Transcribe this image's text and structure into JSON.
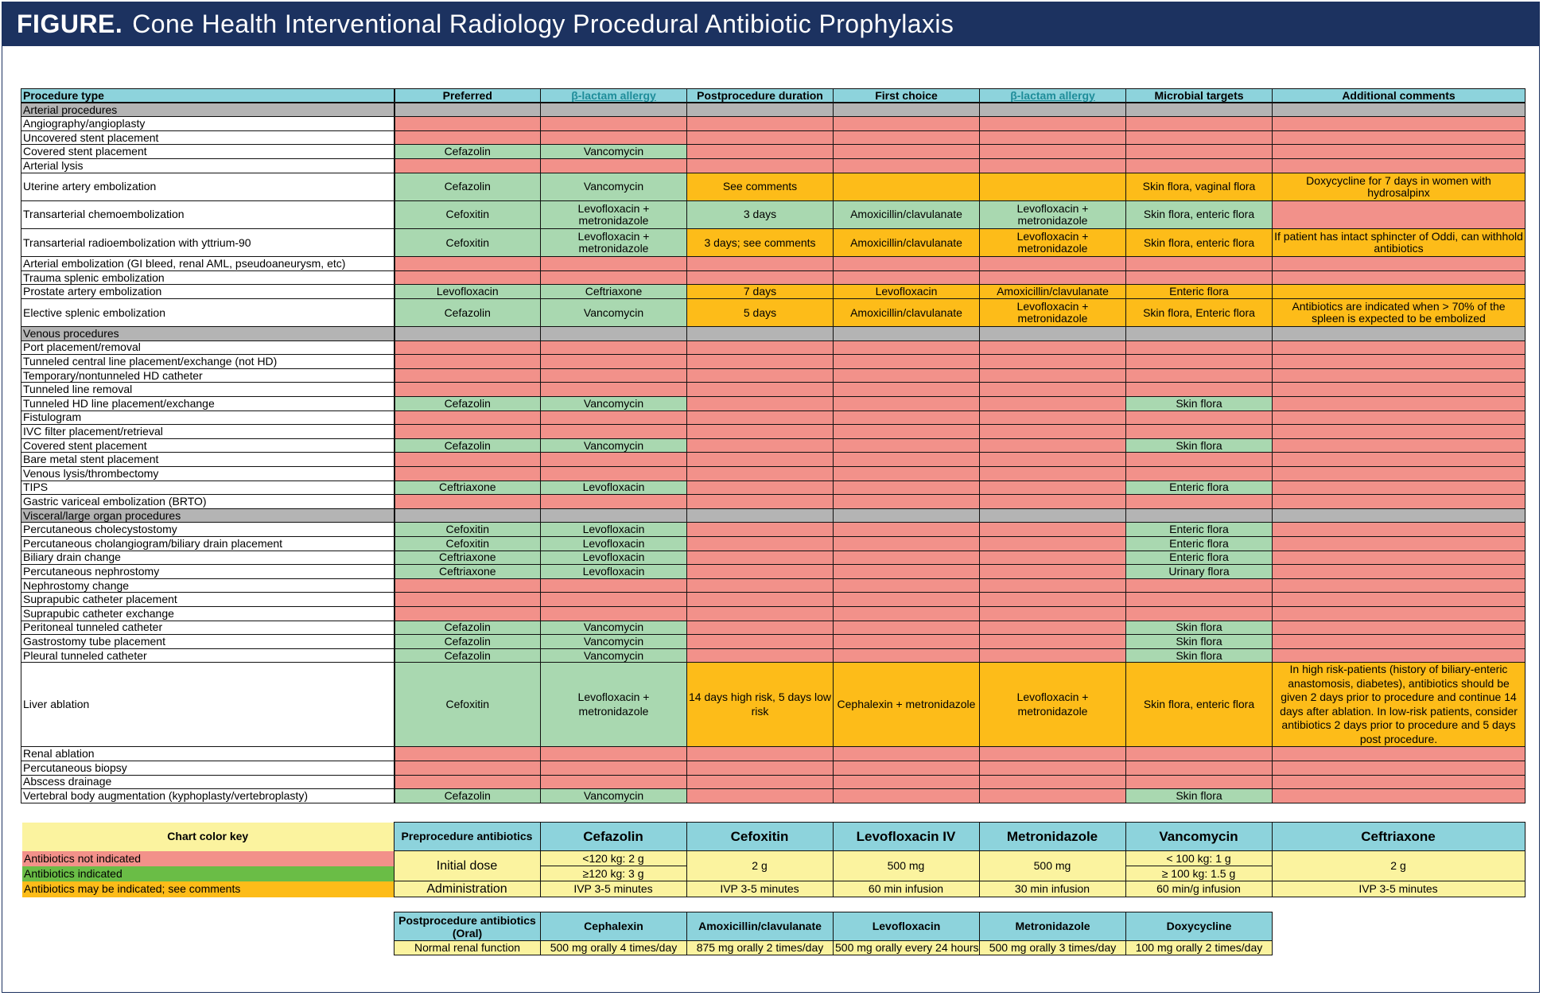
{
  "figure": {
    "label": "FIGURE.",
    "title": "Cone Health Interventional Radiology Procedural Antibiotic Prophylaxis"
  },
  "header": [
    "Procedure type",
    "Preferred",
    "β-lactam allergy",
    "Postprocedure duration",
    "First choice",
    "β-lactam allergy",
    "Microbial targets",
    "Additional comments"
  ],
  "rows": [
    {
      "section": "Arterial procedures"
    },
    {
      "name": "Angiography/angioplasty",
      "cells": [
        [
          "",
          "r"
        ],
        [
          "",
          "r"
        ],
        [
          "",
          "r"
        ],
        [
          "",
          "r"
        ],
        [
          "",
          "r"
        ],
        [
          "",
          "r"
        ],
        [
          "",
          "r"
        ]
      ]
    },
    {
      "name": "Uncovered stent placement",
      "cells": [
        [
          "",
          "r"
        ],
        [
          "",
          "r"
        ],
        [
          "",
          "r"
        ],
        [
          "",
          "r"
        ],
        [
          "",
          "r"
        ],
        [
          "",
          "r"
        ],
        [
          "",
          "r"
        ]
      ]
    },
    {
      "name": "Covered stent placement",
      "cells": [
        [
          "Cefazolin",
          "g"
        ],
        [
          "Vancomycin",
          "g"
        ],
        [
          "",
          "r"
        ],
        [
          "",
          "r"
        ],
        [
          "",
          "r"
        ],
        [
          "",
          "r"
        ],
        [
          "",
          "r"
        ]
      ]
    },
    {
      "name": "Arterial lysis",
      "cells": [
        [
          "",
          "r"
        ],
        [
          "",
          "r"
        ],
        [
          "",
          "r"
        ],
        [
          "",
          "r"
        ],
        [
          "",
          "r"
        ],
        [
          "",
          "r"
        ],
        [
          "",
          "r"
        ]
      ]
    },
    {
      "name": "Uterine artery embolization",
      "tall": 2,
      "cells": [
        [
          "Cefazolin",
          "g"
        ],
        [
          "Vancomycin",
          "g"
        ],
        [
          "See comments",
          "o"
        ],
        [
          "",
          "o"
        ],
        [
          "",
          "o"
        ],
        [
          "Skin flora, vaginal flora",
          "o"
        ],
        [
          "Doxycycline for 7 days in women with hydrosalpinx",
          "o"
        ]
      ]
    },
    {
      "name": "Transarterial chemoembolization",
      "tall": 2,
      "cells": [
        [
          "Cefoxitin",
          "g"
        ],
        [
          "Levofloxacin + metronidazole",
          "g"
        ],
        [
          "3 days",
          "g"
        ],
        [
          "Amoxicillin/clavulanate",
          "g"
        ],
        [
          "Levofloxacin + metronidazole",
          "g"
        ],
        [
          "Skin flora, enteric flora",
          "g"
        ],
        [
          "",
          "r"
        ]
      ]
    },
    {
      "name": "Transarterial radioembolization with yttrium-90",
      "tall": 2,
      "cells": [
        [
          "Cefoxitin",
          "g"
        ],
        [
          "Levofloxacin + metronidazole",
          "g"
        ],
        [
          "3 days; see comments",
          "o"
        ],
        [
          "Amoxicillin/clavulanate",
          "o"
        ],
        [
          "Levofloxacin + metronidazole",
          "o"
        ],
        [
          "Skin flora, enteric flora",
          "o"
        ],
        [
          "If patient has intact sphincter of Oddi, can withhold antibiotics",
          "o"
        ]
      ]
    },
    {
      "name": "Arterial embolization (GI bleed, renal AML, pseudoaneurysm, etc)",
      "cells": [
        [
          "",
          "r"
        ],
        [
          "",
          "r"
        ],
        [
          "",
          "r"
        ],
        [
          "",
          "r"
        ],
        [
          "",
          "r"
        ],
        [
          "",
          "r"
        ],
        [
          "",
          "r"
        ]
      ]
    },
    {
      "name": "Trauma splenic embolization",
      "cells": [
        [
          "",
          "r"
        ],
        [
          "",
          "r"
        ],
        [
          "",
          "r"
        ],
        [
          "",
          "r"
        ],
        [
          "",
          "r"
        ],
        [
          "",
          "r"
        ],
        [
          "",
          "r"
        ]
      ]
    },
    {
      "name": "Prostate artery embolization",
      "cells": [
        [
          "Levofloxacin",
          "g"
        ],
        [
          "Ceftriaxone",
          "g"
        ],
        [
          "7 days",
          "o"
        ],
        [
          "Levofloxacin",
          "o"
        ],
        [
          "Amoxicillin/clavulanate",
          "o"
        ],
        [
          "Enteric flora",
          "o"
        ],
        [
          "",
          "o"
        ]
      ]
    },
    {
      "name": "Elective splenic embolization",
      "tall": 2,
      "cells": [
        [
          "Cefazolin",
          "g"
        ],
        [
          "Vancomycin",
          "g"
        ],
        [
          "5 days",
          "o"
        ],
        [
          "Amoxicillin/clavulanate",
          "o"
        ],
        [
          "Levofloxacin + metronidazole",
          "o"
        ],
        [
          "Skin flora, Enteric flora",
          "o"
        ],
        [
          "Antibiotics are indicated when > 70% of the spleen is expected to be embolized",
          "o"
        ]
      ]
    },
    {
      "section": "Venous procedures"
    },
    {
      "name": "Port placement/removal",
      "cells": [
        [
          "",
          "r"
        ],
        [
          "",
          "r"
        ],
        [
          "",
          "r"
        ],
        [
          "",
          "r"
        ],
        [
          "",
          "r"
        ],
        [
          "",
          "r"
        ],
        [
          "",
          "r"
        ]
      ]
    },
    {
      "name": "Tunneled central line placement/exchange (not HD)",
      "cells": [
        [
          "",
          "r"
        ],
        [
          "",
          "r"
        ],
        [
          "",
          "r"
        ],
        [
          "",
          "r"
        ],
        [
          "",
          "r"
        ],
        [
          "",
          "r"
        ],
        [
          "",
          "r"
        ]
      ]
    },
    {
      "name": "Temporary/nontunneled HD catheter",
      "cells": [
        [
          "",
          "r"
        ],
        [
          "",
          "r"
        ],
        [
          "",
          "r"
        ],
        [
          "",
          "r"
        ],
        [
          "",
          "r"
        ],
        [
          "",
          "r"
        ],
        [
          "",
          "r"
        ]
      ]
    },
    {
      "name": "Tunneled line removal",
      "cells": [
        [
          "",
          "r"
        ],
        [
          "",
          "r"
        ],
        [
          "",
          "r"
        ],
        [
          "",
          "r"
        ],
        [
          "",
          "r"
        ],
        [
          "",
          "r"
        ],
        [
          "",
          "r"
        ]
      ]
    },
    {
      "name": "Tunneled HD line placement/exchange",
      "cells": [
        [
          "Cefazolin",
          "g"
        ],
        [
          "Vancomycin",
          "g"
        ],
        [
          "",
          "r"
        ],
        [
          "",
          "r"
        ],
        [
          "",
          "r"
        ],
        [
          "Skin flora",
          "g"
        ],
        [
          "",
          "r"
        ]
      ]
    },
    {
      "name": "Fistulogram",
      "cells": [
        [
          "",
          "r"
        ],
        [
          "",
          "r"
        ],
        [
          "",
          "r"
        ],
        [
          "",
          "r"
        ],
        [
          "",
          "r"
        ],
        [
          "",
          "r"
        ],
        [
          "",
          "r"
        ]
      ]
    },
    {
      "name": "IVC filter placement/retrieval",
      "cells": [
        [
          "",
          "r"
        ],
        [
          "",
          "r"
        ],
        [
          "",
          "r"
        ],
        [
          "",
          "r"
        ],
        [
          "",
          "r"
        ],
        [
          "",
          "r"
        ],
        [
          "",
          "r"
        ]
      ]
    },
    {
      "name": "Covered stent placement",
      "cells": [
        [
          "Cefazolin",
          "g"
        ],
        [
          "Vancomycin",
          "g"
        ],
        [
          "",
          "r"
        ],
        [
          "",
          "r"
        ],
        [
          "",
          "r"
        ],
        [
          "Skin flora",
          "g"
        ],
        [
          "",
          "r"
        ]
      ]
    },
    {
      "name": "Bare metal stent placement",
      "cells": [
        [
          "",
          "r"
        ],
        [
          "",
          "r"
        ],
        [
          "",
          "r"
        ],
        [
          "",
          "r"
        ],
        [
          "",
          "r"
        ],
        [
          "",
          "r"
        ],
        [
          "",
          "r"
        ]
      ]
    },
    {
      "name": "Venous lysis/thrombectomy",
      "cells": [
        [
          "",
          "r"
        ],
        [
          "",
          "r"
        ],
        [
          "",
          "r"
        ],
        [
          "",
          "r"
        ],
        [
          "",
          "r"
        ],
        [
          "",
          "r"
        ],
        [
          "",
          "r"
        ]
      ]
    },
    {
      "name": "TIPS",
      "cells": [
        [
          "Ceftriaxone",
          "g"
        ],
        [
          "Levofloxacin",
          "g"
        ],
        [
          "",
          "r"
        ],
        [
          "",
          "r"
        ],
        [
          "",
          "r"
        ],
        [
          "Enteric flora",
          "g"
        ],
        [
          "",
          "r"
        ]
      ]
    },
    {
      "name": "Gastric variceal embolization (BRTO)",
      "cells": [
        [
          "",
          "r"
        ],
        [
          "",
          "r"
        ],
        [
          "",
          "r"
        ],
        [
          "",
          "r"
        ],
        [
          "",
          "r"
        ],
        [
          "",
          "r"
        ],
        [
          "",
          "r"
        ]
      ]
    },
    {
      "section": "Visceral/large organ procedures"
    },
    {
      "name": "Percutaneous cholecystostomy",
      "cells": [
        [
          "Cefoxitin",
          "g"
        ],
        [
          "Levofloxacin",
          "g"
        ],
        [
          "",
          "r"
        ],
        [
          "",
          "r"
        ],
        [
          "",
          "r"
        ],
        [
          "Enteric flora",
          "g"
        ],
        [
          "",
          "r"
        ]
      ]
    },
    {
      "name": "Percutaneous cholangiogram/biliary drain placement",
      "cells": [
        [
          "Cefoxitin",
          "g"
        ],
        [
          "Levofloxacin",
          "g"
        ],
        [
          "",
          "r"
        ],
        [
          "",
          "r"
        ],
        [
          "",
          "r"
        ],
        [
          "Enteric flora",
          "g"
        ],
        [
          "",
          "r"
        ]
      ]
    },
    {
      "name": "Biliary drain change",
      "cells": [
        [
          "Ceftriaxone",
          "g"
        ],
        [
          "Levofloxacin",
          "g"
        ],
        [
          "",
          "r"
        ],
        [
          "",
          "r"
        ],
        [
          "",
          "r"
        ],
        [
          "Enteric flora",
          "g"
        ],
        [
          "",
          "r"
        ]
      ]
    },
    {
      "name": "Percutaneous nephrostomy",
      "cells": [
        [
          "Ceftriaxone",
          "g"
        ],
        [
          "Levofloxacin",
          "g"
        ],
        [
          "",
          "r"
        ],
        [
          "",
          "r"
        ],
        [
          "",
          "r"
        ],
        [
          "Urinary flora",
          "g"
        ],
        [
          "",
          "r"
        ]
      ]
    },
    {
      "name": "Nephrostomy change",
      "cells": [
        [
          "",
          "r"
        ],
        [
          "",
          "r"
        ],
        [
          "",
          "r"
        ],
        [
          "",
          "r"
        ],
        [
          "",
          "r"
        ],
        [
          "",
          "r"
        ],
        [
          "",
          "r"
        ]
      ]
    },
    {
      "name": "Suprapubic catheter placement",
      "cells": [
        [
          "",
          "r"
        ],
        [
          "",
          "r"
        ],
        [
          "",
          "r"
        ],
        [
          "",
          "r"
        ],
        [
          "",
          "r"
        ],
        [
          "",
          "r"
        ],
        [
          "",
          "r"
        ]
      ]
    },
    {
      "name": "Suprapubic catheter exchange",
      "cells": [
        [
          "",
          "r"
        ],
        [
          "",
          "r"
        ],
        [
          "",
          "r"
        ],
        [
          "",
          "r"
        ],
        [
          "",
          "r"
        ],
        [
          "",
          "r"
        ],
        [
          "",
          "r"
        ]
      ]
    },
    {
      "name": "Peritoneal tunneled catheter",
      "cells": [
        [
          "Cefazolin",
          "g"
        ],
        [
          "Vancomycin",
          "g"
        ],
        [
          "",
          "r"
        ],
        [
          "",
          "r"
        ],
        [
          "",
          "r"
        ],
        [
          "Skin flora",
          "g"
        ],
        [
          "",
          "r"
        ]
      ]
    },
    {
      "name": "Gastrostomy tube placement",
      "cells": [
        [
          "Cefazolin",
          "g"
        ],
        [
          "Vancomycin",
          "g"
        ],
        [
          "",
          "r"
        ],
        [
          "",
          "r"
        ],
        [
          "",
          "r"
        ],
        [
          "Skin flora",
          "g"
        ],
        [
          "",
          "r"
        ]
      ]
    },
    {
      "name": "Pleural tunneled catheter",
      "cells": [
        [
          "Cefazolin",
          "g"
        ],
        [
          "Vancomycin",
          "g"
        ],
        [
          "",
          "r"
        ],
        [
          "",
          "r"
        ],
        [
          "",
          "r"
        ],
        [
          "Skin flora",
          "g"
        ],
        [
          "",
          "r"
        ]
      ]
    },
    {
      "name": "Liver ablation",
      "tall": 6,
      "cells": [
        [
          "Cefoxitin",
          "g"
        ],
        [
          "Levofloxacin + metronidazole",
          "g"
        ],
        [
          "14 days high risk, 5 days low risk",
          "o"
        ],
        [
          "Cephalexin + metronidazole",
          "o"
        ],
        [
          "Levofloxacin + metronidazole",
          "o"
        ],
        [
          "Skin flora, enteric flora",
          "o"
        ],
        [
          "In high risk-patients (history of biliary-enteric anastomosis, diabetes), antibiotics should be given 2 days prior to procedure and continue 14 days after ablation. In low-risk patients, consider antibiotics 2 days prior to procedure and 5 days post procedure.",
          "o"
        ]
      ]
    },
    {
      "name": "Renal ablation",
      "cells": [
        [
          "",
          "r"
        ],
        [
          "",
          "r"
        ],
        [
          "",
          "r"
        ],
        [
          "",
          "r"
        ],
        [
          "",
          "r"
        ],
        [
          "",
          "r"
        ],
        [
          "",
          "r"
        ]
      ]
    },
    {
      "name": "Percutaneous biopsy",
      "cells": [
        [
          "",
          "r"
        ],
        [
          "",
          "r"
        ],
        [
          "",
          "r"
        ],
        [
          "",
          "r"
        ],
        [
          "",
          "r"
        ],
        [
          "",
          "r"
        ],
        [
          "",
          "r"
        ]
      ]
    },
    {
      "name": "Abscess drainage",
      "cells": [
        [
          "",
          "r"
        ],
        [
          "",
          "r"
        ],
        [
          "",
          "r"
        ],
        [
          "",
          "r"
        ],
        [
          "",
          "r"
        ],
        [
          "",
          "r"
        ],
        [
          "",
          "r"
        ]
      ]
    },
    {
      "name": "Vertebral body augmentation (kyphoplasty/vertebroplasty)",
      "cells": [
        [
          "Cefazolin",
          "g"
        ],
        [
          "Vancomycin",
          "g"
        ],
        [
          "",
          "r"
        ],
        [
          "",
          "r"
        ],
        [
          "",
          "r"
        ],
        [
          "Skin flora",
          "g"
        ],
        [
          "",
          "r"
        ]
      ]
    }
  ],
  "key": {
    "title": "Chart color key",
    "not_indicated": "Antibiotics not indicated",
    "indicated": "Antibiotics indicated",
    "may_be": "Antibiotics may be indicated; see comments",
    "pre_label": "Preprocedure antibiotics",
    "drugs": [
      "Cefazolin",
      "Cefoxitin",
      "Levofloxacin IV",
      "Metronidazole",
      "Vancomycin",
      "Ceftriaxone"
    ],
    "initial_dose": "Initial dose",
    "administration": "Administration",
    "cefazolin_dose_1": "<120 kg: 2 g",
    "cefazolin_dose_2": "≥120 kg: 3 g",
    "cefoxitin_dose": "2 g",
    "levo_dose": "500 mg",
    "metro_dose": "500 mg",
    "vanco_dose_1": "< 100 kg: 1 g",
    "vanco_dose_2": "≥ 100 kg: 1.5 g",
    "ceftriaxone_dose": "2 g",
    "admin": [
      "IVP 3-5 minutes",
      "IVP 3-5 minutes",
      "60 min infusion",
      "30 min infusion",
      "60 min/g infusion",
      "IVP 3-5 minutes"
    ]
  },
  "post": {
    "label_1": "Postprocedure antibiotics",
    "label_2": "(Oral)",
    "drugs": [
      "Cephalexin",
      "Amoxicillin/clavulanate",
      "Levofloxacin",
      "Metronidazole",
      "Doxycycline"
    ],
    "row_label": "Normal renal function",
    "doses": [
      "500 mg orally 4 times/day",
      "875 mg orally 2 times/day",
      "500 mg orally every 24 hours",
      "500 mg orally 3 times/day",
      "100 mg orally 2 times/day"
    ]
  },
  "colors": {
    "red": "#f2918a",
    "green": "#a9d8b0",
    "orange": "#fdbc19",
    "header": "#8dd3dc",
    "section": "#b4b4b4",
    "key_yellow": "#fbf39f",
    "banner": "#1c3260"
  }
}
